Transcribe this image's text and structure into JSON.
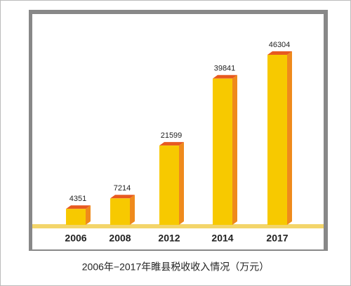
{
  "chart_data": {
    "type": "bar3d",
    "title": "2006年−2017年睢县税收收入情况（万元）",
    "categories": [
      "2006",
      "2008",
      "2012",
      "2014",
      "2017"
    ],
    "values": [
      4351,
      7214,
      21599,
      39841,
      46304
    ],
    "color": "#f7c900",
    "side_color": "#ef8a1c",
    "top_color": "#e75a20"
  }
}
